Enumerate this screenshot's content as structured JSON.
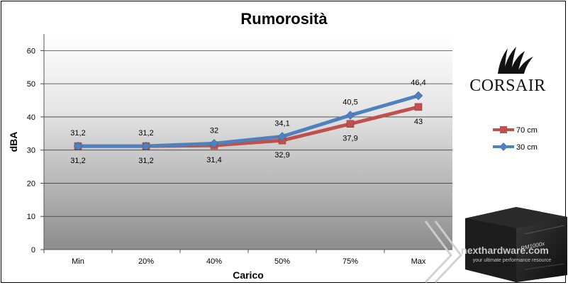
{
  "chart_data": {
    "type": "line",
    "title": "Rumorosità",
    "xlabel": "Carico",
    "ylabel": "dBA",
    "categories": [
      "Min",
      "20%",
      "40%",
      "50%",
      "75%",
      "Max"
    ],
    "y_ticks": [
      "0",
      "10",
      "20",
      "30",
      "40",
      "50",
      "60"
    ],
    "ylim": [
      0,
      65
    ],
    "grid": "horizontal",
    "legend_position": "right",
    "series": [
      {
        "name": "70 cm",
        "color": "#c0504d",
        "marker": "square",
        "values": [
          31.2,
          31.2,
          31.4,
          32.9,
          37.9,
          43
        ],
        "labels": [
          "31,2",
          "31,2",
          "31,4",
          "32,9",
          "37,9",
          "43"
        ]
      },
      {
        "name": "30 cm",
        "color": "#4f81bd",
        "marker": "diamond",
        "values": [
          31.2,
          31.2,
          32,
          34.1,
          40.5,
          46.4
        ],
        "labels": [
          "31,2",
          "31,2",
          "32",
          "34,1",
          "40,5",
          "46,4"
        ]
      }
    ]
  },
  "brand": {
    "logo_text": "CORSAIR",
    "logo_icon": "corsair-sails-icon"
  },
  "product": {
    "model_label": "RM1000x"
  },
  "watermark": {
    "text": "nexthardware.com",
    "tagline": "your ultimate performance resource"
  }
}
